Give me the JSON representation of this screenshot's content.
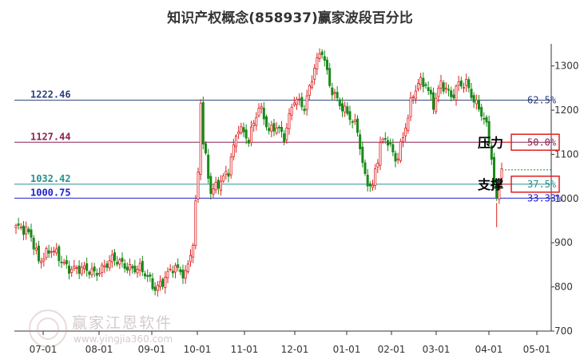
{
  "chart_data": {
    "type": "candlestick",
    "title": "知识产权概念(858937)赢家波段百分比",
    "xlabel": "",
    "ylabel": "",
    "ylim": [
      700,
      1350
    ],
    "y_ticks": [
      700,
      800,
      900,
      1000,
      1100,
      1200,
      1300
    ],
    "x_ticks": [
      "07-01",
      "08-01",
      "09-01",
      "10-01",
      "11-01",
      "12-01",
      "01-01",
      "02-01",
      "03-01",
      "04-01",
      "05-01"
    ],
    "grid": false,
    "colors": {
      "up": "#e02020",
      "down": "#1a8a1a"
    },
    "levels": [
      {
        "value": 1222.46,
        "label": "1222.46",
        "pct": "62.5%",
        "color": "#2c3e7a",
        "boxed": false
      },
      {
        "value": 1127.44,
        "label": "1127.44",
        "pct": "50.0%",
        "color": "#8b2252",
        "boxed": true
      },
      {
        "value": 1032.42,
        "label": "1032.42",
        "pct": "37.5%",
        "color": "#2a8f8f",
        "boxed": true
      },
      {
        "value": 1000.75,
        "label": "1000.75",
        "pct": "33.33%",
        "color": "#2020d0",
        "boxed": false
      }
    ],
    "annotations": [
      {
        "text": "压力",
        "kind": "resistance"
      },
      {
        "text": "支撑",
        "kind": "support"
      }
    ],
    "anchors": [
      [
        0,
        935
      ],
      [
        6,
        915
      ],
      [
        9,
        865
      ],
      [
        14,
        880
      ],
      [
        20,
        850
      ],
      [
        26,
        835
      ],
      [
        31,
        835
      ],
      [
        38,
        858
      ],
      [
        43,
        852
      ],
      [
        49,
        838
      ],
      [
        55,
        800
      ],
      [
        62,
        838
      ],
      [
        67,
        832
      ],
      [
        70,
        905
      ],
      [
        72,
        1060
      ],
      [
        73,
        1215
      ],
      [
        74,
        1120
      ],
      [
        77,
        1015
      ],
      [
        80,
        1040
      ],
      [
        84,
        1060
      ],
      [
        88,
        1160
      ],
      [
        92,
        1140
      ],
      [
        96,
        1205
      ],
      [
        100,
        1150
      ],
      [
        103,
        1170
      ],
      [
        106,
        1140
      ],
      [
        110,
        1220
      ],
      [
        114,
        1210
      ],
      [
        118,
        1300
      ],
      [
        121,
        1330
      ],
      [
        124,
        1255
      ],
      [
        128,
        1220
      ],
      [
        132,
        1180
      ],
      [
        135,
        1150
      ],
      [
        138,
        1050
      ],
      [
        141,
        1030
      ],
      [
        144,
        1120
      ],
      [
        147,
        1130
      ],
      [
        150,
        1090
      ],
      [
        153,
        1140
      ],
      [
        156,
        1210
      ],
      [
        159,
        1260
      ],
      [
        162,
        1265
      ],
      [
        165,
        1215
      ],
      [
        168,
        1255
      ],
      [
        172,
        1230
      ],
      [
        175,
        1265
      ],
      [
        178,
        1260
      ],
      [
        181,
        1215
      ],
      [
        184,
        1195
      ],
      [
        186,
        1170
      ],
      [
        188,
        1100
      ],
      [
        189,
        1030
      ],
      [
        190,
        995
      ],
      [
        191,
        1045
      ],
      [
        192,
        1065
      ]
    ],
    "total_bars": 193
  },
  "watermark": {
    "name": "赢家江恩软件",
    "url": "www.yingjia360.com"
  }
}
